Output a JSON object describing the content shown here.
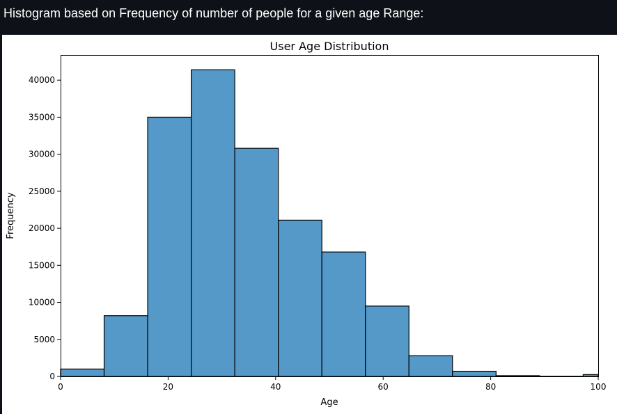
{
  "header": {
    "heading": "Histogram based on Frequency of number of people for a given age Range:"
  },
  "chart_data": {
    "type": "bar",
    "title": "User Age Distribution",
    "xlabel": "Age",
    "ylabel": "Frequency",
    "xlim": [
      0,
      100
    ],
    "ylim": [
      0,
      43400
    ],
    "bins": [
      {
        "start": 0,
        "end": 8.1,
        "value": 1000
      },
      {
        "start": 8.1,
        "end": 16.2,
        "value": 8200
      },
      {
        "start": 16.2,
        "end": 24.3,
        "value": 35000
      },
      {
        "start": 24.3,
        "end": 32.4,
        "value": 41400
      },
      {
        "start": 32.4,
        "end": 40.5,
        "value": 30800
      },
      {
        "start": 40.5,
        "end": 48.6,
        "value": 21100
      },
      {
        "start": 48.6,
        "end": 56.7,
        "value": 16800
      },
      {
        "start": 56.7,
        "end": 64.8,
        "value": 9500
      },
      {
        "start": 64.8,
        "end": 72.9,
        "value": 2800
      },
      {
        "start": 72.9,
        "end": 81.0,
        "value": 700
      },
      {
        "start": 81.0,
        "end": 89.1,
        "value": 100
      },
      {
        "start": 89.1,
        "end": 97.2,
        "value": 30
      },
      {
        "start": 97.2,
        "end": 100,
        "value": 250
      }
    ],
    "x_ticks": [
      0,
      20,
      40,
      60,
      80,
      100
    ],
    "y_ticks": [
      0,
      5000,
      10000,
      15000,
      20000,
      25000,
      30000,
      35000,
      40000
    ],
    "bar_color": "#5499c7",
    "edge_color": "#000000",
    "grid": false
  }
}
